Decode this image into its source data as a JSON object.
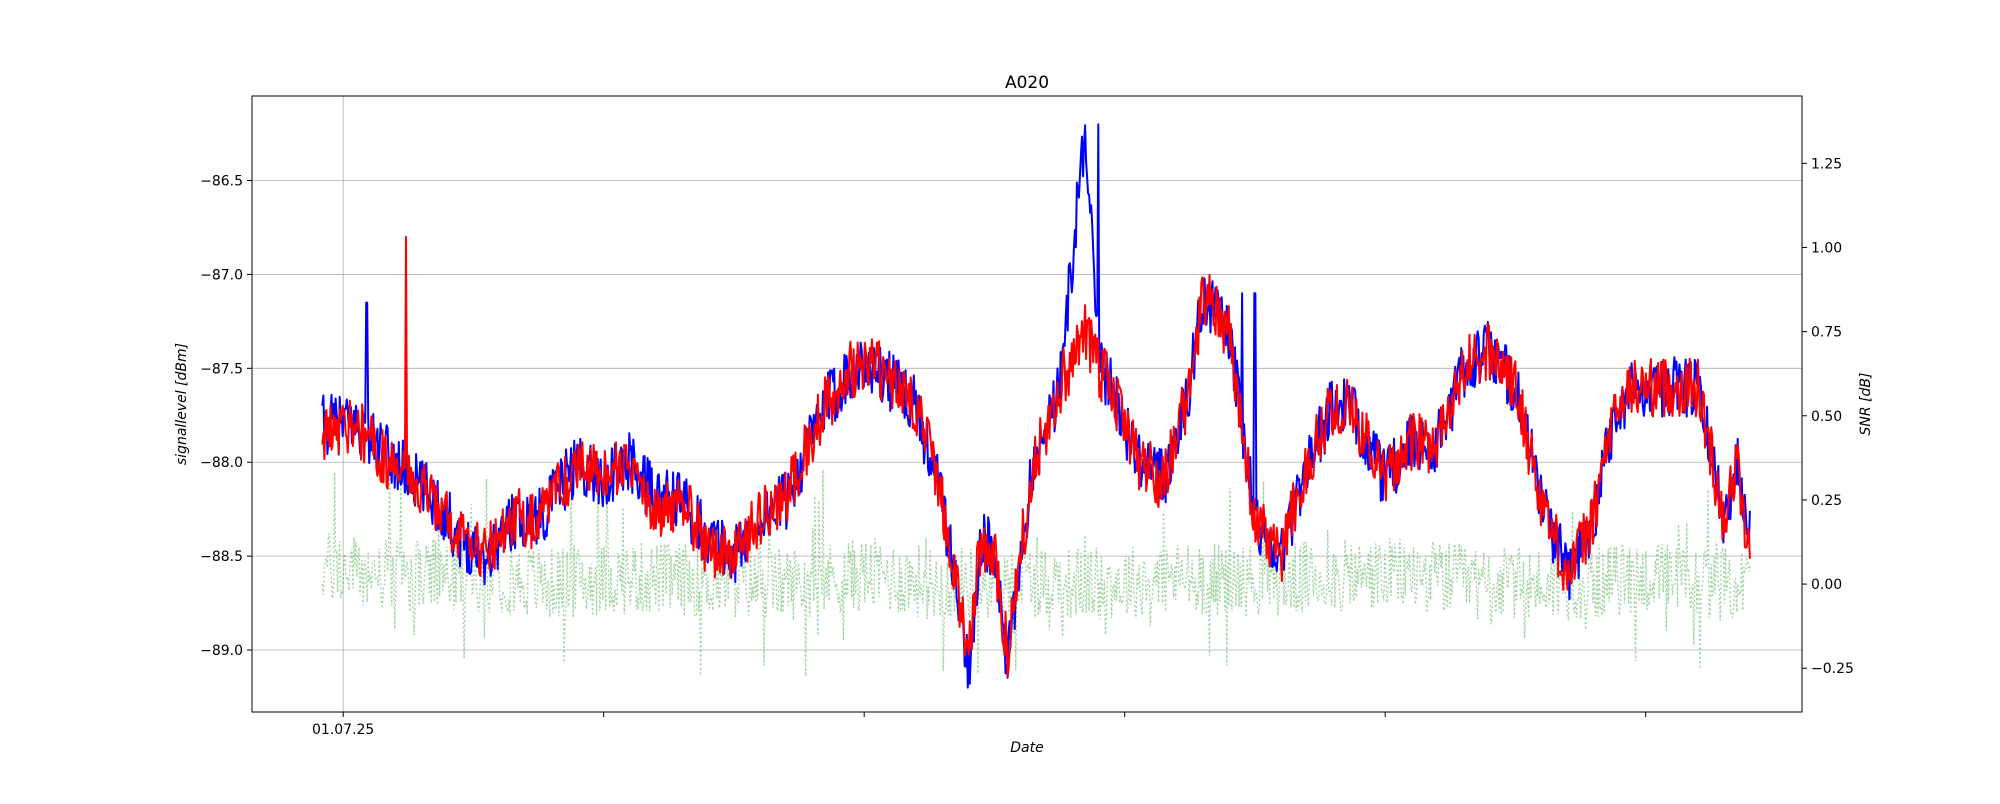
{
  "chart_data": {
    "type": "line",
    "title": "A020",
    "xlabel": "Date",
    "ylabel_left": "signallevel [dBm]",
    "ylabel_right": "SNR [dB]",
    "ylim_left": [
      -89.33,
      -86.05
    ],
    "ylim_right": [
      -0.38,
      1.45
    ],
    "yticks_left": [
      "−89.0",
      "−88.5",
      "−88.0",
      "−87.5",
      "−87.0",
      "−86.5"
    ],
    "yticks_left_values": [
      -89.0,
      -88.5,
      -88.0,
      -87.5,
      -87.0,
      -86.5
    ],
    "yticks_right": [
      "−0.25",
      "0.00",
      "0.25",
      "0.50",
      "0.75",
      "1.00",
      "1.25"
    ],
    "yticks_right_values": [
      -0.25,
      0.0,
      0.25,
      0.5,
      0.75,
      1.0,
      1.25
    ],
    "xlim_days": [
      -0.35,
      5.6
    ],
    "xticks_days": [
      0,
      1,
      2,
      3,
      4,
      5
    ],
    "xtick_labels": [
      "01.07.25",
      "",
      "",
      "",
      "",
      ""
    ],
    "grid": true,
    "colors": {
      "series_a": "#0000ff",
      "series_b": "#ff0000",
      "snr": "#2ca02c"
    },
    "series": [
      {
        "axis": "left",
        "style": "solid",
        "color": "#0000ff",
        "x_days": [
          -0.08,
          0.05,
          0.2,
          0.35,
          0.45,
          0.55,
          0.65,
          0.75,
          0.9,
          1.0,
          1.1,
          1.2,
          1.3,
          1.4,
          1.5,
          1.6,
          1.7,
          1.85,
          1.95,
          2.05,
          2.2,
          2.3,
          2.4,
          2.45,
          2.5,
          2.55,
          2.6,
          2.65,
          2.75,
          2.85,
          2.9,
          2.95,
          3.05,
          3.15,
          3.25,
          3.3,
          3.4,
          3.5,
          3.6,
          3.7,
          3.8,
          3.85,
          3.9,
          4.0,
          4.1,
          4.2,
          4.3,
          4.4,
          4.5,
          4.6,
          4.7,
          4.8,
          4.85,
          4.9,
          4.95,
          5.0,
          5.1,
          5.2,
          5.3,
          5.35,
          5.4
        ],
        "values": [
          -87.8,
          -87.8,
          -88.0,
          -88.2,
          -88.4,
          -88.5,
          -88.3,
          -88.3,
          -88.0,
          -88.1,
          -88.0,
          -88.2,
          -88.2,
          -88.4,
          -88.5,
          -88.3,
          -88.2,
          -87.7,
          -87.5,
          -87.5,
          -87.7,
          -88.2,
          -89.1,
          -88.4,
          -88.5,
          -89.1,
          -88.5,
          -88.0,
          -87.6,
          -86.2,
          -87.5,
          -87.6,
          -88.0,
          -88.1,
          -87.6,
          -87.1,
          -87.3,
          -88.3,
          -88.5,
          -88.0,
          -87.7,
          -87.7,
          -87.8,
          -88.1,
          -87.9,
          -87.9,
          -87.5,
          -87.4,
          -87.6,
          -88.2,
          -88.6,
          -88.3,
          -87.9,
          -87.7,
          -87.6,
          -87.6,
          -87.6,
          -87.6,
          -88.3,
          -88.0,
          -88.3
        ],
        "peaks": [
          [
            0.09,
            -87.15
          ],
          [
            2.9,
            -86.2
          ],
          [
            3.45,
            -87.1
          ],
          [
            3.5,
            -87.1
          ]
        ]
      },
      {
        "axis": "left",
        "style": "solid",
        "color": "#ff0000",
        "x_days": [
          -0.08,
          0.05,
          0.2,
          0.35,
          0.45,
          0.55,
          0.65,
          0.75,
          0.9,
          1.0,
          1.1,
          1.2,
          1.3,
          1.4,
          1.5,
          1.6,
          1.7,
          1.85,
          1.95,
          2.05,
          2.2,
          2.3,
          2.4,
          2.45,
          2.5,
          2.55,
          2.6,
          2.65,
          2.75,
          2.85,
          2.9,
          2.95,
          3.05,
          3.15,
          3.25,
          3.3,
          3.4,
          3.5,
          3.6,
          3.7,
          3.8,
          3.85,
          3.9,
          4.0,
          4.1,
          4.2,
          4.3,
          4.4,
          4.5,
          4.6,
          4.7,
          4.8,
          4.85,
          4.9,
          4.95,
          5.0,
          5.1,
          5.2,
          5.3,
          5.35,
          5.4
        ],
        "values": [
          -87.85,
          -87.8,
          -88.05,
          -88.2,
          -88.4,
          -88.5,
          -88.3,
          -88.3,
          -88.0,
          -88.1,
          -88.0,
          -88.25,
          -88.2,
          -88.45,
          -88.5,
          -88.3,
          -88.2,
          -87.7,
          -87.5,
          -87.5,
          -87.7,
          -88.2,
          -89.0,
          -88.4,
          -88.5,
          -89.0,
          -88.5,
          -88.0,
          -87.6,
          -87.3,
          -87.5,
          -87.6,
          -88.0,
          -88.1,
          -87.6,
          -87.1,
          -87.3,
          -88.3,
          -88.5,
          -88.0,
          -87.7,
          -87.7,
          -87.8,
          -88.1,
          -87.9,
          -87.9,
          -87.5,
          -87.4,
          -87.6,
          -88.2,
          -88.6,
          -88.3,
          -87.9,
          -87.7,
          -87.6,
          -87.6,
          -87.6,
          -87.6,
          -88.3,
          -88.0,
          -88.55
        ],
        "peaks": [
          [
            0.24,
            -86.8
          ]
        ]
      },
      {
        "axis": "right",
        "style": "dotted",
        "color": "#2ca02c",
        "x_days": [
          -0.08,
          0.2,
          0.5,
          0.8,
          1.1,
          1.4,
          1.7,
          2.0,
          2.3,
          2.6,
          2.9,
          3.2,
          3.5,
          3.8,
          4.1,
          4.4,
          4.7,
          5.0,
          5.3,
          5.4
        ],
        "values": [
          0.05,
          0.02,
          0.03,
          0.0,
          0.02,
          0.01,
          0.0,
          0.03,
          0.0,
          0.01,
          0.0,
          0.02,
          0.01,
          0.02,
          0.03,
          0.0,
          0.0,
          0.02,
          0.0,
          0.0
        ],
        "noise_range": [
          -0.3,
          0.35
        ]
      }
    ]
  }
}
